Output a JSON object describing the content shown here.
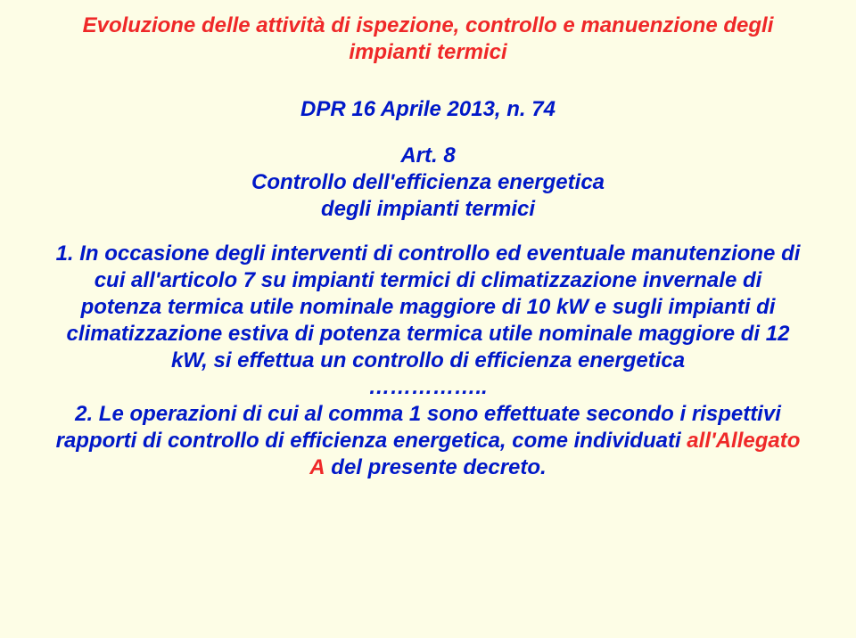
{
  "colors": {
    "background": "#fdfde6",
    "title": "#ef2828",
    "body": "#0018c8",
    "highlight": "#ef2828"
  },
  "typography": {
    "family": "Comic Sans MS",
    "size_pt": 24,
    "italic": true,
    "bold": true,
    "align": "center"
  },
  "title": "Evoluzione delle attività di ispezione, controllo e manuenzione degli impianti termici",
  "ref": "DPR 16 Aprile 2013, n. 74",
  "subhead_line1": "Art. 8",
  "subhead_line2": "Controllo dell'efficienza energetica",
  "subhead_line3": "degli impianti termici",
  "para1": "1. In occasione degli interventi di controllo ed eventuale manutenzione di cui all'articolo 7 su impianti termici di climatizzazione invernale di potenza termica utile nominale maggiore di 10 kW e sugli impianti di climatizzazione estiva di potenza termica utile nominale maggiore di 12 kW, si effettua un controllo di efficienza energetica",
  "ellipsis": "……………..",
  "para2_pre": "2. Le operazioni di cui al comma 1 sono effettuate secondo i rispettivi rapporti di controllo di efficienza energetica, come individuati ",
  "para2_hl": "all'Allegato A",
  "para2_post": " del presente decreto."
}
